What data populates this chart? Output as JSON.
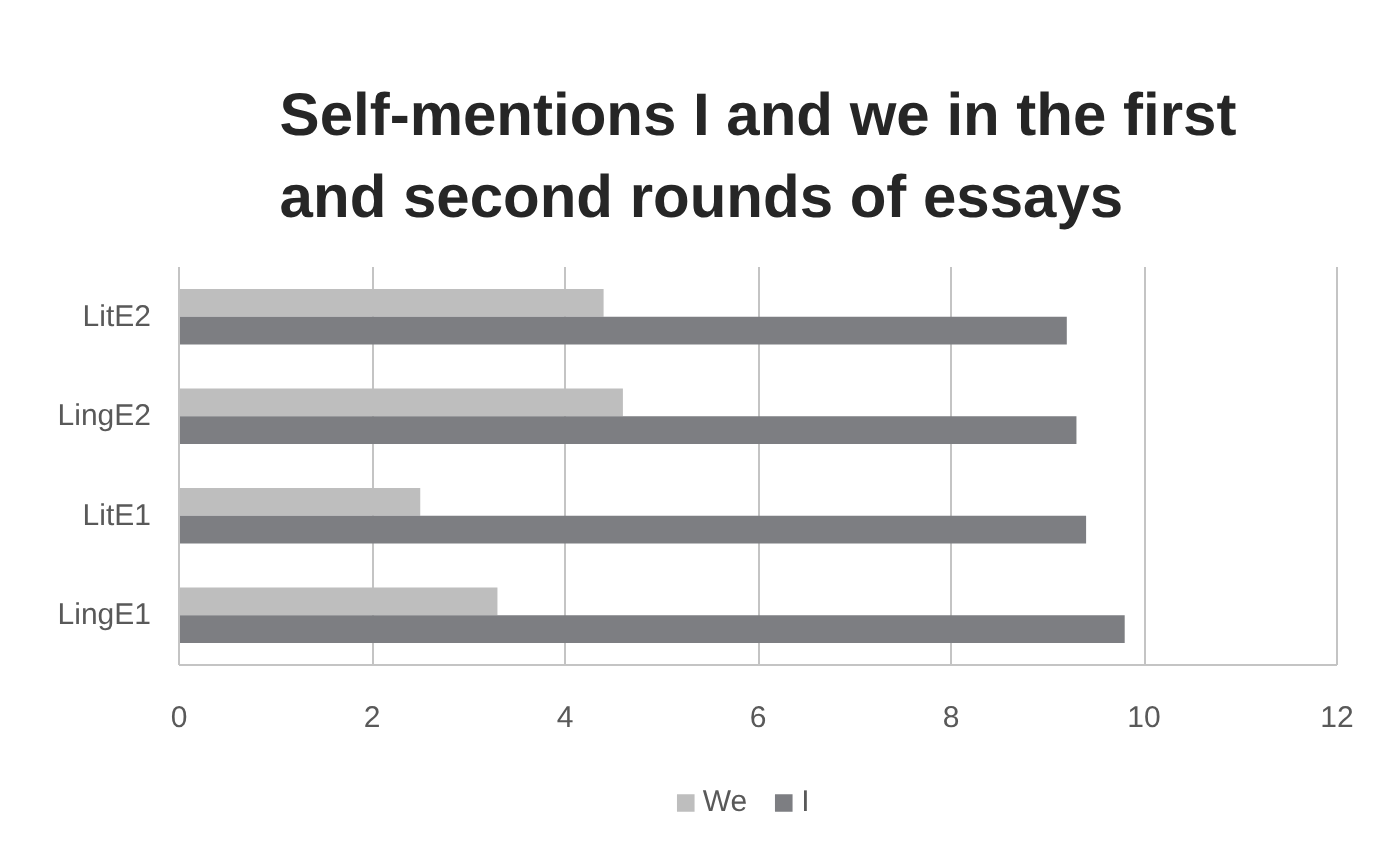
{
  "chart_data": {
    "type": "bar",
    "orientation": "horizontal",
    "title": "Self-mentions I and we in the first and second rounds of essays",
    "categories": [
      "LitE2",
      "LingE2",
      "LitE1",
      "LingE1"
    ],
    "series": [
      {
        "name": "We",
        "color": "#bebebe",
        "values": [
          4.4,
          4.6,
          2.5,
          3.3
        ]
      },
      {
        "name": "I",
        "color": "#7d7e82",
        "values": [
          9.2,
          9.3,
          9.4,
          9.8
        ]
      }
    ],
    "xlim": [
      0,
      12
    ],
    "xticks": [
      0,
      2,
      4,
      6,
      8,
      10,
      12
    ],
    "grid": "x",
    "legend": "bottom"
  }
}
